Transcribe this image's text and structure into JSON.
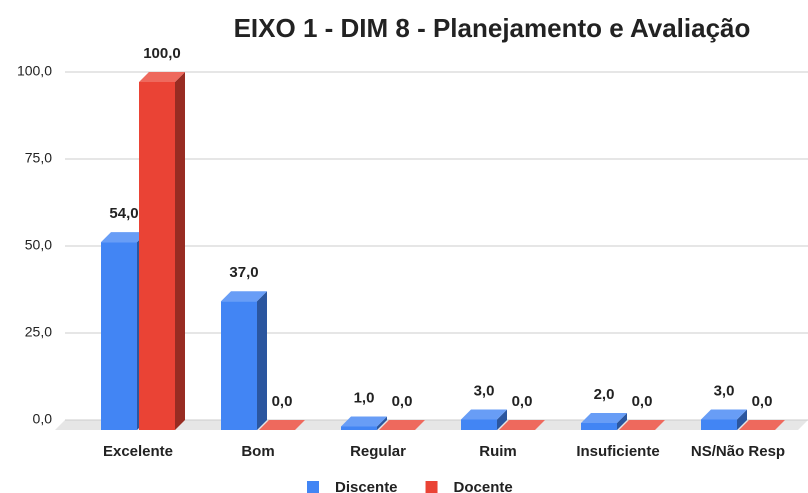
{
  "chart_data": {
    "type": "bar3d",
    "title": "EIXO 1 - DIM 8 - Planejamento e Avaliação",
    "categories": [
      "Excelente",
      "Bom",
      "Regular",
      "Ruim",
      "Insuficiente",
      "NS/Não Resp"
    ],
    "series": [
      {
        "name": "Discente",
        "color": "#4285f4",
        "values": [
          54,
          37,
          1,
          3,
          2,
          3
        ],
        "value_labels": [
          "54,0",
          "37,0",
          "1,0",
          "3,0",
          "2,0",
          "3,0"
        ]
      },
      {
        "name": "Docente",
        "color": "#ea4335",
        "values": [
          100,
          0,
          0,
          0,
          0,
          0
        ],
        "value_labels": [
          "100,0",
          "0,0",
          "0,0",
          "0,0",
          "0,0",
          "0,0"
        ]
      }
    ],
    "ylim": [
      0,
      100
    ],
    "yticks": [
      {
        "value": 0,
        "label": "0,0"
      },
      {
        "value": 25,
        "label": "25,0"
      },
      {
        "value": 50,
        "label": "50,0"
      },
      {
        "value": 75,
        "label": "75,0"
      },
      {
        "value": 100,
        "label": "100,0"
      }
    ],
    "grid": true,
    "legend": "bottom"
  }
}
